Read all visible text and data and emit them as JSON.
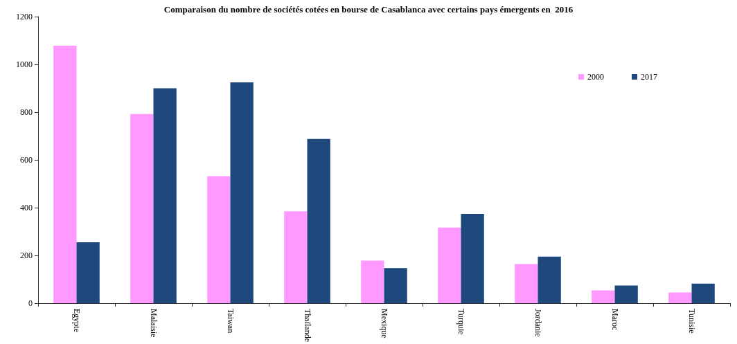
{
  "chart_data": {
    "type": "bar",
    "title": "Comparaison du nombre de sociétés cotées en bourse de Casablanca avec certains pays émergents en  2016",
    "categories": [
      "Egypte",
      "Malaisie",
      "Taiwan",
      "Thaïlande",
      "Mexique",
      "Turquie",
      "Jordanie",
      "Maroc",
      "Tunisie"
    ],
    "series": [
      {
        "name": "2000",
        "color": "#ff99ff",
        "values": [
          1078,
          792,
          532,
          385,
          178,
          317,
          164,
          54,
          45
        ]
      },
      {
        "name": "2017",
        "color": "#1f497d",
        "values": [
          255,
          900,
          925,
          688,
          147,
          374,
          195,
          74,
          82
        ]
      }
    ],
    "ylim": [
      0,
      1200
    ],
    "yticks": [
      0,
      200,
      400,
      600,
      800,
      1000,
      1200
    ],
    "grid": false,
    "legend": "top right"
  }
}
